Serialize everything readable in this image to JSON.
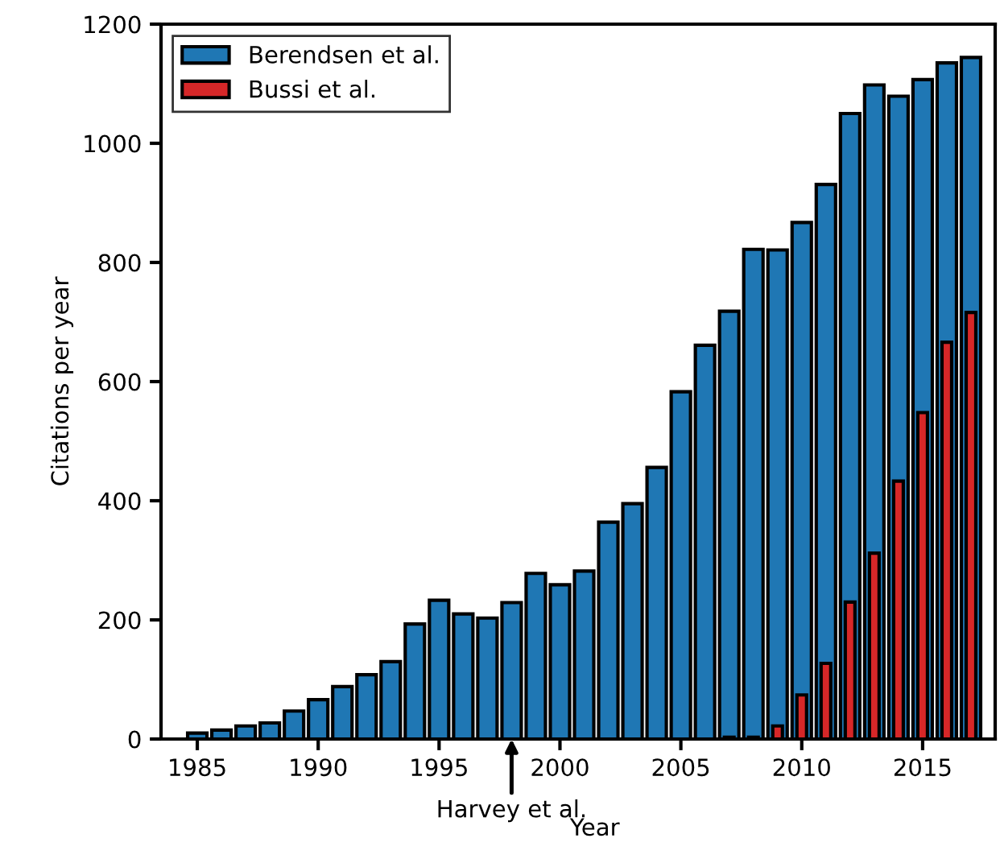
{
  "chart_data": {
    "type": "bar",
    "xlabel": "Year",
    "ylabel": "Citations per year",
    "x": [
      1985,
      1986,
      1987,
      1988,
      1989,
      1990,
      1991,
      1992,
      1993,
      1994,
      1995,
      1996,
      1997,
      1998,
      1999,
      2000,
      2001,
      2002,
      2003,
      2004,
      2005,
      2006,
      2007,
      2008,
      2009,
      2010,
      2011,
      2012,
      2013,
      2014,
      2015,
      2016,
      2017
    ],
    "series": [
      {
        "name": "Berendsen et al.",
        "color": "#1f77b4",
        "values": [
          10,
          15,
          22,
          27,
          47,
          66,
          88,
          108,
          130,
          193,
          233,
          210,
          203,
          229,
          278,
          259,
          282,
          364,
          395,
          456,
          583,
          661,
          718,
          822,
          821,
          867,
          931,
          1050,
          1098,
          1079,
          1107,
          1135,
          1144
        ]
      },
      {
        "name": "Bussi et al.",
        "color": "#d62728",
        "values": [
          null,
          null,
          null,
          null,
          null,
          null,
          null,
          null,
          null,
          null,
          null,
          null,
          null,
          null,
          null,
          null,
          null,
          null,
          null,
          null,
          null,
          null,
          3,
          3,
          22,
          74,
          127,
          230,
          312,
          433,
          548,
          666,
          716
        ]
      }
    ],
    "xlim": [
      1983.5,
      2018
    ],
    "xticks": [
      1985,
      1990,
      1995,
      2000,
      2005,
      2010,
      2015
    ],
    "ylim": [
      0,
      1200
    ],
    "yticks": [
      0,
      200,
      400,
      600,
      800,
      1000,
      1200
    ],
    "annotations": [
      {
        "text": "Harvey et al.",
        "x": 1998,
        "y": 0
      }
    ],
    "legend": "top left",
    "grid": false
  }
}
